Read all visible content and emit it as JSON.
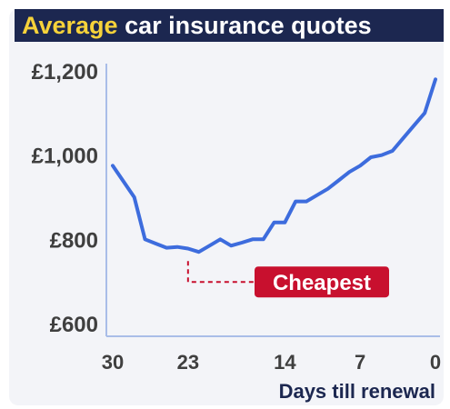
{
  "header": {
    "title_highlight": "Average",
    "title_rest": "car insurance quotes"
  },
  "colors": {
    "title_bg": "#1c2750",
    "title_highlight": "#f6d23a",
    "line": "#3d6cdd",
    "annotation": "#c8102e",
    "axis": "#a9bde8"
  },
  "chart_data": {
    "type": "line",
    "title": "Average car insurance quotes",
    "xlabel": "Days till renewal",
    "ylabel": "",
    "x_reversed": true,
    "xlim": [
      30,
      0
    ],
    "ylim": [
      600,
      1200
    ],
    "x_ticks": [
      30,
      23,
      14,
      7,
      0
    ],
    "x_tick_labels": [
      "30",
      "23",
      "14",
      "7",
      "0"
    ],
    "y_ticks": [
      600,
      800,
      1000,
      1200
    ],
    "y_tick_labels": [
      "£600",
      "£800",
      "£1,000",
      "£1,200"
    ],
    "grid": false,
    "series": [
      {
        "name": "",
        "x": [
          30,
          28,
          27,
          26,
          25,
          24,
          23,
          22,
          21,
          20,
          19,
          18,
          17,
          16,
          15,
          14,
          13,
          12,
          11,
          10,
          9,
          8,
          7,
          6,
          5,
          4,
          3,
          2,
          1,
          0
        ],
        "y": [
          975,
          900,
          800,
          790,
          780,
          782,
          778,
          770,
          785,
          800,
          785,
          792,
          800,
          800,
          840,
          840,
          890,
          890,
          905,
          920,
          940,
          960,
          975,
          995,
          1000,
          1010,
          1040,
          1070,
          1100,
          1180
        ]
      }
    ],
    "annotations": [
      {
        "text": "Cheapest",
        "x": 23,
        "y": 770
      }
    ]
  }
}
